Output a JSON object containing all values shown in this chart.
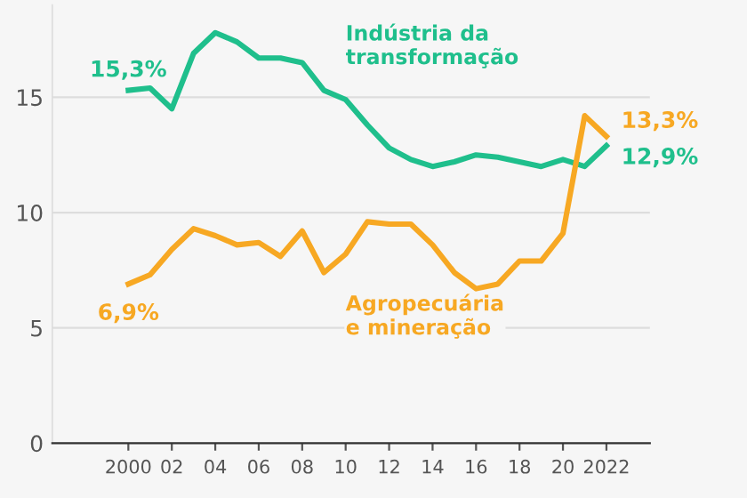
{
  "chart_data": {
    "type": "line",
    "x": [
      2000,
      2001,
      2002,
      2003,
      2004,
      2005,
      2006,
      2007,
      2008,
      2009,
      2010,
      2011,
      2012,
      2013,
      2014,
      2015,
      2016,
      2017,
      2018,
      2019,
      2020,
      2021,
      2022
    ],
    "series": [
      {
        "name": "Indústria da transformação",
        "color": "#1fbf8c",
        "values": [
          15.3,
          15.4,
          14.5,
          16.9,
          17.8,
          17.4,
          16.7,
          16.7,
          16.5,
          15.3,
          14.9,
          13.8,
          12.8,
          12.3,
          12.0,
          12.2,
          12.5,
          12.4,
          12.2,
          12.0,
          12.3,
          12.0,
          12.9
        ],
        "value_labels": [
          "15,3%",
          null,
          null,
          null,
          null,
          null,
          null,
          null,
          null,
          null,
          null,
          null,
          null,
          null,
          null,
          null,
          null,
          null,
          null,
          null,
          null,
          null,
          "12,9%"
        ]
      },
      {
        "name": "Agropecuária e mineração",
        "color": "#f7a823",
        "values": [
          6.9,
          7.3,
          8.4,
          9.3,
          9.0,
          8.6,
          8.7,
          8.1,
          9.2,
          7.4,
          8.2,
          9.6,
          9.5,
          9.5,
          8.6,
          7.4,
          6.7,
          6.9,
          7.9,
          7.9,
          9.1,
          14.2,
          13.3
        ],
        "value_labels": [
          "6,9%",
          null,
          null,
          null,
          null,
          null,
          null,
          null,
          null,
          null,
          null,
          null,
          null,
          null,
          null,
          null,
          null,
          null,
          null,
          null,
          null,
          null,
          "13,3%"
        ]
      }
    ],
    "xlim": [
      1996.5,
      2024
    ],
    "xticks": [
      2000,
      {
        "value": 2002,
        "label": "02"
      },
      {
        "value": 2004,
        "label": "04"
      },
      {
        "value": 2006,
        "label": "06"
      },
      {
        "value": 2008,
        "label": "08"
      },
      {
        "value": 2010,
        "label": "10"
      },
      {
        "value": 2012,
        "label": "12"
      },
      {
        "value": 2014,
        "label": "14"
      },
      {
        "value": 2016,
        "label": "16"
      },
      {
        "value": 2018,
        "label": "18"
      },
      {
        "value": 2020,
        "label": "20"
      },
      2022
    ],
    "ylim": [
      0,
      19
    ],
    "yticks": [
      0,
      5,
      10,
      15
    ],
    "grid": "y",
    "legend": false,
    "marker": "none",
    "line_style": "solid"
  }
}
